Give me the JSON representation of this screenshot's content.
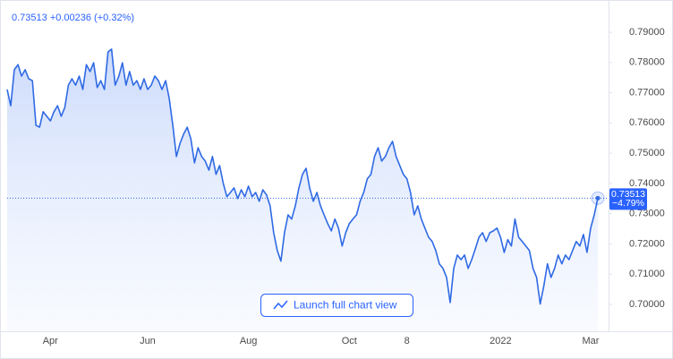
{
  "chart_data": {
    "type": "line",
    "header": "0.73513 +0.00236 (+0.32%)",
    "price_label": "0.73513",
    "change_label": "−4.79%",
    "button": "Launch full chart view",
    "categories": [
      null,
      null,
      null,
      null,
      null,
      null,
      null,
      null,
      null,
      null,
      null,
      null,
      "Apr",
      null,
      null,
      null,
      null,
      null,
      null,
      null,
      null,
      null,
      null,
      null,
      null,
      null,
      null,
      null,
      null,
      null,
      null,
      null,
      null,
      null,
      null,
      null,
      null,
      null,
      null,
      "Jun",
      null,
      null,
      null,
      null,
      null,
      null,
      null,
      null,
      null,
      null,
      null,
      null,
      null,
      null,
      null,
      null,
      null,
      null,
      null,
      null,
      null,
      null,
      null,
      null,
      null,
      null,
      null,
      "Aug",
      null,
      null,
      null,
      null,
      null,
      null,
      null,
      null,
      null,
      null,
      null,
      null,
      null,
      null,
      null,
      null,
      null,
      null,
      null,
      null,
      null,
      null,
      null,
      null,
      null,
      null,
      null,
      "Oct",
      null,
      null,
      null,
      null,
      null,
      null,
      null,
      null,
      null,
      null,
      null,
      null,
      null,
      null,
      null,
      "8",
      null,
      null,
      null,
      null,
      null,
      null,
      null,
      null,
      null,
      null,
      null,
      null,
      null,
      null,
      null,
      null,
      null,
      null,
      null,
      null,
      null,
      null,
      null,
      null,
      null,
      "2022",
      null,
      null,
      null,
      null,
      null,
      null,
      null,
      null,
      null,
      null,
      null,
      null,
      null,
      null,
      null,
      null,
      null,
      null,
      null,
      null,
      null,
      null,
      null,
      null,
      "Mar",
      null,
      null
    ],
    "series": [
      {
        "color": "#2f6ae4",
        "values": [
          0.7711,
          0.7657,
          0.7776,
          0.7793,
          0.7755,
          0.7776,
          0.7746,
          0.774,
          0.7592,
          0.7586,
          0.7637,
          0.7622,
          0.7607,
          0.7637,
          0.7657,
          0.7622,
          0.7651,
          0.7725,
          0.7746,
          0.7725,
          0.7755,
          0.7711,
          0.7793,
          0.777,
          0.7799,
          0.7717,
          0.774,
          0.7711,
          0.7835,
          0.7844,
          0.7725,
          0.7755,
          0.7799,
          0.7725,
          0.777,
          0.7725,
          0.774,
          0.7711,
          0.7746,
          0.7711,
          0.7725,
          0.7755,
          0.774,
          0.7711,
          0.774,
          0.7681,
          0.7592,
          0.7489,
          0.7533,
          0.7563,
          0.7586,
          0.7548,
          0.7468,
          0.7518,
          0.7489,
          0.7474,
          0.7444,
          0.7489,
          0.743,
          0.7459,
          0.74,
          0.7356,
          0.737,
          0.7385,
          0.735,
          0.7379,
          0.7356,
          0.7391,
          0.7356,
          0.737,
          0.7341,
          0.7379,
          0.7362,
          0.7326,
          0.7237,
          0.7178,
          0.7143,
          0.7237,
          0.7296,
          0.7282,
          0.7326,
          0.7385,
          0.743,
          0.745,
          0.7385,
          0.7341,
          0.737,
          0.7326,
          0.7296,
          0.7267,
          0.7243,
          0.7282,
          0.7252,
          0.7193,
          0.7237,
          0.7267,
          0.7282,
          0.7296,
          0.7341,
          0.737,
          0.7415,
          0.743,
          0.7489,
          0.7518,
          0.7474,
          0.7489,
          0.7518,
          0.7539,
          0.7489,
          0.7459,
          0.743,
          0.7415,
          0.737,
          0.7296,
          0.7326,
          0.7282,
          0.7252,
          0.7222,
          0.7208,
          0.7178,
          0.7134,
          0.7119,
          0.7089,
          0.7006,
          0.7119,
          0.7163,
          0.7148,
          0.7163,
          0.7119,
          0.7148,
          0.7184,
          0.7222,
          0.7237,
          0.7208,
          0.7237,
          0.7243,
          0.7252,
          0.7222,
          0.7172,
          0.7214,
          0.7193,
          0.7282,
          0.7222,
          0.7208,
          0.7193,
          0.7178,
          0.7119,
          0.7089,
          0.7001,
          0.706,
          0.7134,
          0.7089,
          0.7119,
          0.7163,
          0.7134,
          0.7163,
          0.7148,
          0.7178,
          0.7208,
          0.7193,
          0.7231,
          0.7172,
          0.7252,
          0.7296,
          0.73513
        ]
      }
    ],
    "ylim": [
      0.6911,
      0.7983
    ],
    "yticks": [
      {
        "value": 0.79,
        "label": "0.79000"
      },
      {
        "value": 0.78,
        "label": "0.78000"
      },
      {
        "value": 0.77,
        "label": "0.77000"
      },
      {
        "value": 0.76,
        "label": "0.76000"
      },
      {
        "value": 0.75,
        "label": "0.75000"
      },
      {
        "value": 0.74,
        "label": "0.74000"
      },
      {
        "value": 0.73,
        "label": "0.73000"
      },
      {
        "value": 0.72,
        "label": "0.72000"
      },
      {
        "value": 0.71,
        "label": "0.71000"
      },
      {
        "value": 0.7,
        "label": "0.70000"
      }
    ],
    "grid": false
  }
}
